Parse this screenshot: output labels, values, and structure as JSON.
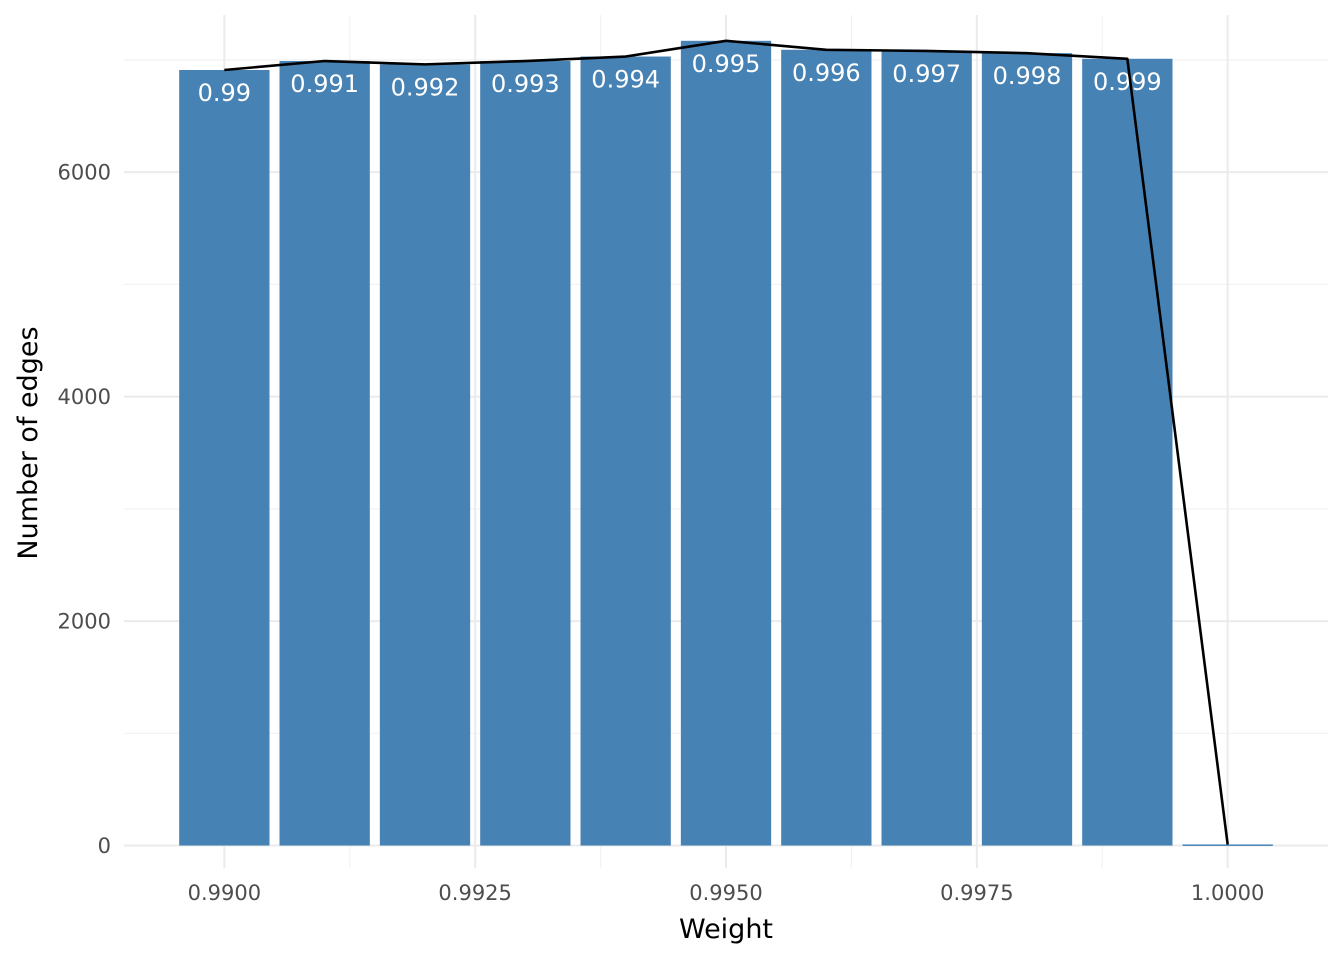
{
  "chart_data": {
    "type": "bar",
    "xlabel": "Weight",
    "ylabel": "Number of edges",
    "xlim": [
      0.989,
      1.001
    ],
    "ylim": [
      -200,
      7400
    ],
    "x_ticks": [
      0.99,
      0.9925,
      0.995,
      0.9975,
      1.0
    ],
    "x_tick_labels": [
      "0.9900",
      "0.9925",
      "0.9950",
      "0.9975",
      "1.0000"
    ],
    "y_ticks": [
      0,
      2000,
      4000,
      6000
    ],
    "y_tick_labels": [
      "0",
      "2000",
      "4000",
      "6000"
    ],
    "grid": true,
    "bar_color": "#4682b4",
    "line_color": "#000000",
    "bars": [
      {
        "x": 0.99,
        "value": 6910,
        "label": "0.99"
      },
      {
        "x": 0.991,
        "value": 6990,
        "label": "0.991"
      },
      {
        "x": 0.992,
        "value": 6960,
        "label": "0.992"
      },
      {
        "x": 0.993,
        "value": 6990,
        "label": "0.993"
      },
      {
        "x": 0.994,
        "value": 7030,
        "label": "0.994"
      },
      {
        "x": 0.995,
        "value": 7170,
        "label": "0.995"
      },
      {
        "x": 0.996,
        "value": 7090,
        "label": "0.996"
      },
      {
        "x": 0.997,
        "value": 7080,
        "label": "0.997"
      },
      {
        "x": 0.998,
        "value": 7060,
        "label": "0.998"
      },
      {
        "x": 0.999,
        "value": 7010,
        "label": "0.999"
      },
      {
        "x": 1.0,
        "value": 10,
        "label": ""
      }
    ],
    "line": {
      "x": [
        0.99,
        0.991,
        0.992,
        0.993,
        0.994,
        0.995,
        0.996,
        0.997,
        0.998,
        0.999,
        1.0
      ],
      "y": [
        6910,
        6990,
        6960,
        6990,
        7030,
        7170,
        7090,
        7080,
        7060,
        7010,
        10
      ]
    }
  }
}
